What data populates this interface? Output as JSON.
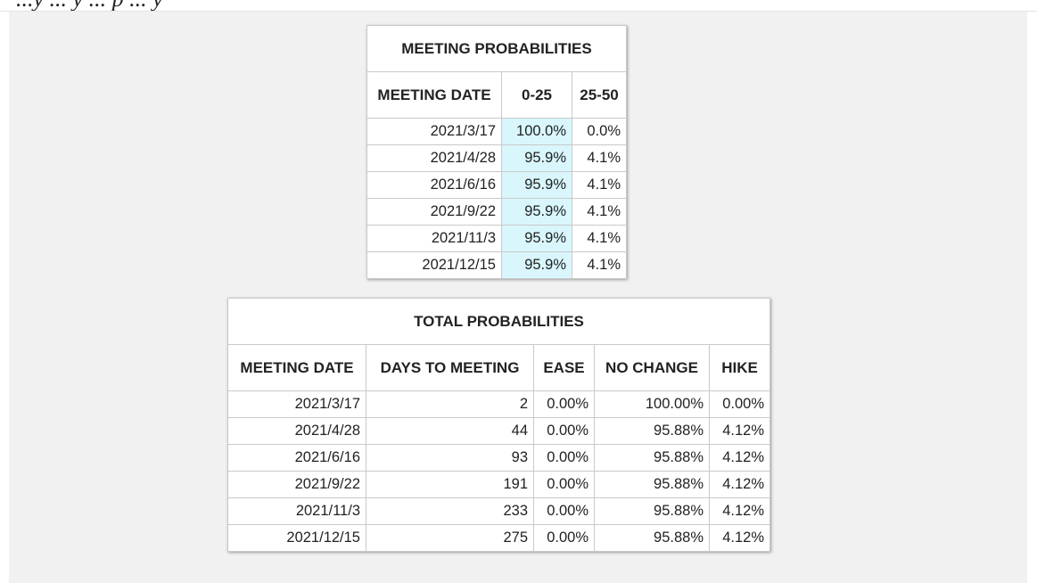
{
  "header_fragment": "...y ... y ... p ... y",
  "meeting_probabilities": {
    "title": "MEETING PROBABILITIES",
    "columns": [
      "MEETING DATE",
      "0-25",
      "25-50"
    ],
    "rows": [
      [
        "2021/3/17",
        "100.0%",
        "0.0%"
      ],
      [
        "2021/4/28",
        "95.9%",
        "4.1%"
      ],
      [
        "2021/6/16",
        "95.9%",
        "4.1%"
      ],
      [
        "2021/9/22",
        "95.9%",
        "4.1%"
      ],
      [
        "2021/11/3",
        "95.9%",
        "4.1%"
      ],
      [
        "2021/12/15",
        "95.9%",
        "4.1%"
      ]
    ],
    "highlight_color": "#d9f6fd"
  },
  "total_probabilities": {
    "title": "TOTAL PROBABILITIES",
    "columns": [
      "MEETING DATE",
      "DAYS TO MEETING",
      "EASE",
      "NO CHANGE",
      "HIKE"
    ],
    "rows": [
      [
        "2021/3/17",
        "2",
        "0.00%",
        "100.00%",
        "0.00%"
      ],
      [
        "2021/4/28",
        "44",
        "0.00%",
        "95.88%",
        "4.12%"
      ],
      [
        "2021/6/16",
        "93",
        "0.00%",
        "95.88%",
        "4.12%"
      ],
      [
        "2021/9/22",
        "191",
        "0.00%",
        "95.88%",
        "4.12%"
      ],
      [
        "2021/11/3",
        "233",
        "0.00%",
        "95.88%",
        "4.12%"
      ],
      [
        "2021/12/15",
        "275",
        "0.00%",
        "95.88%",
        "4.12%"
      ]
    ]
  }
}
